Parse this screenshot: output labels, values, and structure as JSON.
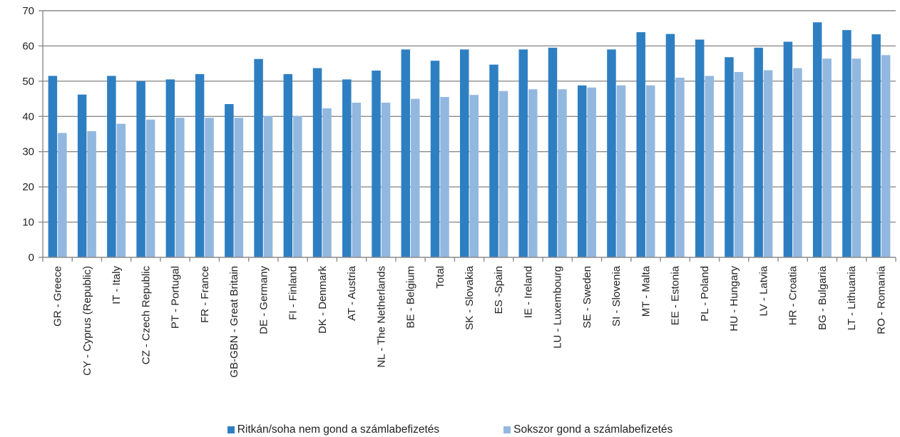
{
  "chart_data": {
    "type": "bar",
    "title": "",
    "xlabel": "",
    "ylabel": "",
    "ylim": [
      0,
      70
    ],
    "yticks": [
      0,
      10,
      20,
      30,
      40,
      50,
      60,
      70
    ],
    "grid": true,
    "legend_position": "bottom",
    "categories": [
      "GR - Greece",
      "CY - Cyprus (Republic)",
      "IT - Italy",
      "CZ - Czech Republic",
      "PT - Portugal",
      "FR - France",
      "GB-GBN - Great Britain",
      "DE - Germany",
      "FI - Finland",
      "DK - Denmark",
      "AT - Austria",
      "NL - The Netherlands",
      "BE - Belgium",
      "Total",
      "SK - Slovakia",
      "ES -Spain",
      "IE - Ireland",
      "LU - Luxembourg",
      "SE - Sweden",
      "SI - Slovenia",
      "MT - Malta",
      "EE - Estonia",
      "PL - Poland",
      "HU - Hungary",
      "LV - Latvia",
      "HR - Croatia",
      "BG - Bulgaria",
      "LT - Lithuania",
      "RO - Romania"
    ],
    "series": [
      {
        "name": "Ritkán/soha nem gond a számlabefizetés",
        "color": "#2e7fc2",
        "values": [
          51.5,
          46.2,
          51.5,
          50.0,
          50.5,
          52.0,
          43.5,
          56.3,
          52.0,
          53.7,
          50.5,
          53.0,
          59.0,
          55.8,
          59.0,
          54.7,
          59.0,
          59.5,
          48.8,
          59.0,
          63.9,
          63.4,
          61.8,
          56.8,
          59.5,
          61.2,
          66.7,
          64.5,
          63.3
        ]
      },
      {
        "name": "Sokszor gond a számlabefizetés",
        "color": "#92b8e0",
        "values": [
          35.3,
          35.8,
          37.9,
          39.1,
          39.6,
          39.6,
          39.6,
          40.1,
          40.1,
          42.3,
          43.9,
          43.9,
          45.0,
          45.5,
          46.1,
          47.2,
          47.7,
          47.7,
          48.2,
          48.8,
          48.8,
          51.0,
          51.5,
          52.6,
          53.1,
          53.7,
          56.4,
          56.4,
          57.4
        ]
      }
    ]
  }
}
